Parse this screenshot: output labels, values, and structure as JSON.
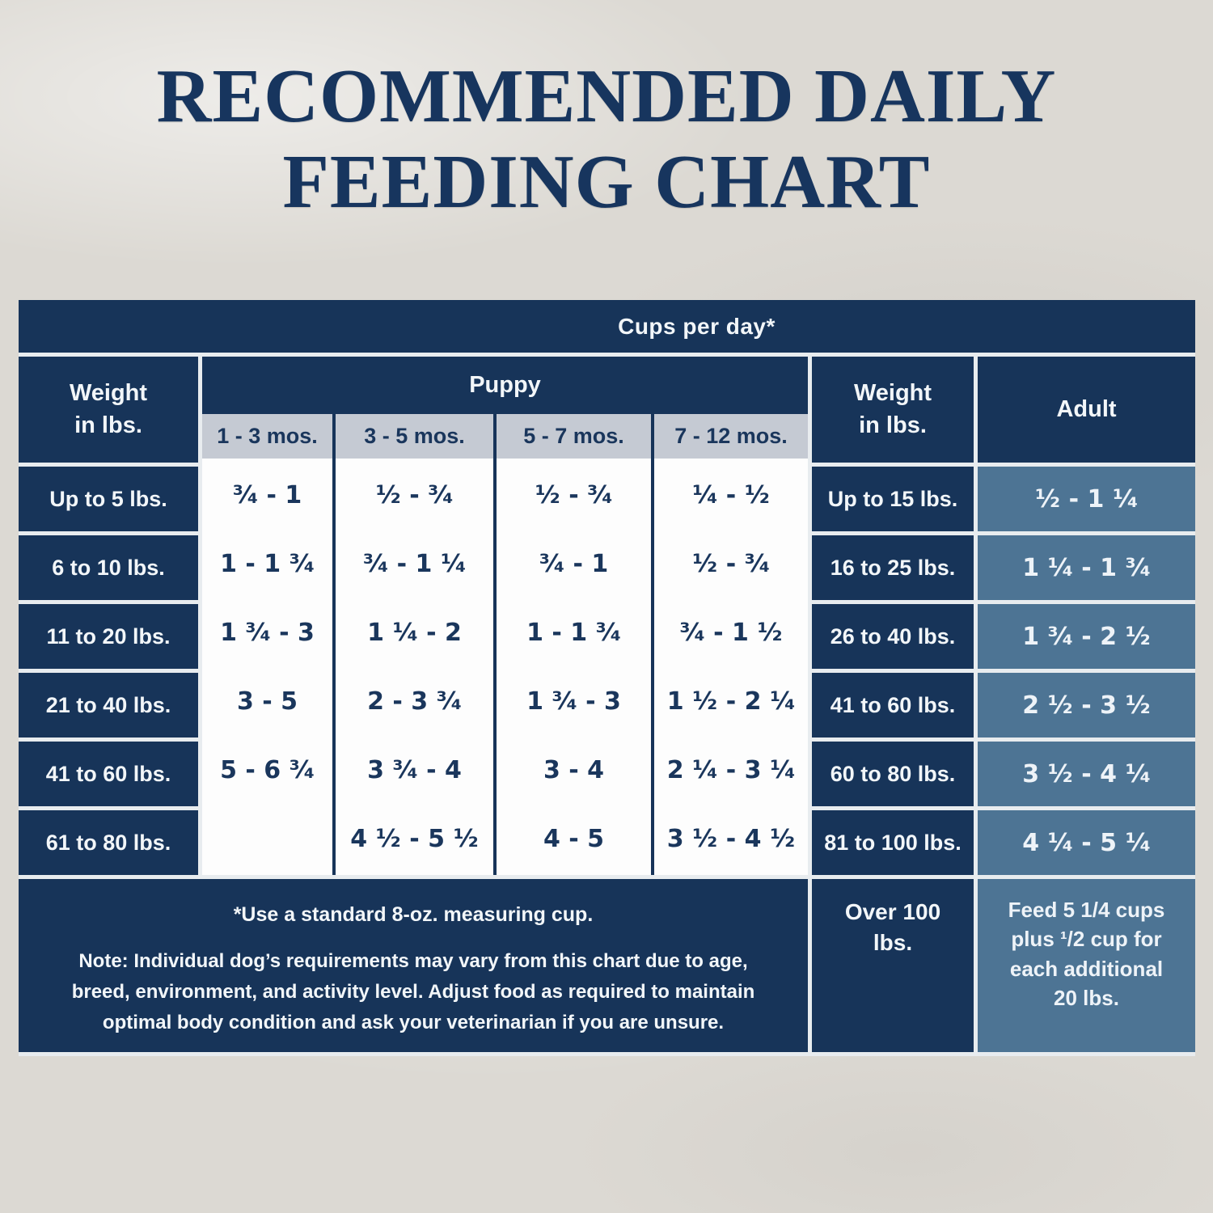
{
  "chart_data": {
    "type": "table",
    "title": "RECOMMENDED DAILY\nFEEDING CHART",
    "unit_header": "Cups per day*",
    "left_section": {
      "weight_header": "Weight\nin lbs.",
      "group_header": "Puppy",
      "age_columns": [
        "1 - 3 mos.",
        "3 - 5 mos.",
        "5 - 7 mos.",
        "7 - 12 mos."
      ],
      "rows": [
        {
          "weight": "Up to 5 lbs.",
          "values": [
            "³⁄₄ - 1",
            "¹⁄₂ - ³⁄₄",
            "¹⁄₂ - ³⁄₄",
            "¹⁄₄ - ¹⁄₂"
          ]
        },
        {
          "weight": "6 to 10 lbs.",
          "values": [
            "1 - 1 ³⁄₄",
            "³⁄₄ - 1 ¹⁄₄",
            "³⁄₄ - 1",
            "¹⁄₂ - ³⁄₄"
          ]
        },
        {
          "weight": "11 to 20 lbs.",
          "values": [
            "1 ³⁄₄ - 3",
            "1 ¹⁄₄ - 2",
            "1 - 1 ³⁄₄",
            "³⁄₄ - 1 ¹⁄₂"
          ]
        },
        {
          "weight": "21 to 40 lbs.",
          "values": [
            "3 - 5",
            "2 - 3 ³⁄₄",
            "1 ³⁄₄ - 3",
            "1 ¹⁄₂ - 2 ¹⁄₄"
          ]
        },
        {
          "weight": "41 to 60 lbs.",
          "values": [
            "5 - 6 ³⁄₄",
            "3 ³⁄₄ - 4",
            "3 - 4",
            "2 ¹⁄₄ - 3 ¹⁄₄"
          ]
        },
        {
          "weight": "61 to 80 lbs.",
          "values": [
            "",
            "4 ¹⁄₂ - 5 ¹⁄₂",
            "4 - 5",
            "3 ¹⁄₂ - 4 ¹⁄₂"
          ]
        }
      ]
    },
    "right_section": {
      "weight_header": "Weight\nin lbs.",
      "group_header": "Adult",
      "rows": [
        {
          "weight": "Up to 15 lbs.",
          "value": "¹⁄₂ - 1 ¹⁄₄"
        },
        {
          "weight": "16 to 25 lbs.",
          "value": "1 ¹⁄₄ - 1 ³⁄₄"
        },
        {
          "weight": "26 to 40 lbs.",
          "value": "1 ³⁄₄ - 2 ¹⁄₂"
        },
        {
          "weight": "41 to 60 lbs.",
          "value": "2 ¹⁄₂ - 3 ¹⁄₂"
        },
        {
          "weight": "60 to 80 lbs.",
          "value": "3 ¹⁄₂ - 4 ¹⁄₄"
        },
        {
          "weight": "81 to 100 lbs.",
          "value": "4 ¹⁄₄ - 5 ¹⁄₄"
        }
      ],
      "overflow_row": {
        "weight": "Over 100\nlbs.",
        "value": "Feed 5 1/4 cups\nplus ¹/2 cup for\neach additional\n20 lbs."
      }
    },
    "footnotes": {
      "measuring_cup": "*Use a standard 8-oz. measuring cup.",
      "note": "Note: Individual dog’s requirements may vary from this chart due to age,\nbreed, environment, and activity level. Adjust food as required to maintain\noptimal body condition and ask your veterinarian if you are unsure."
    },
    "colors": {
      "navy": "#173459",
      "steel_blue": "#4d7494",
      "subheader_gray": "#c5cad3",
      "cell_white": "#fdfdfd",
      "gap_white": "#e8ecef",
      "page_background": "#dcd9d3",
      "title_navy": "#17355e"
    }
  }
}
